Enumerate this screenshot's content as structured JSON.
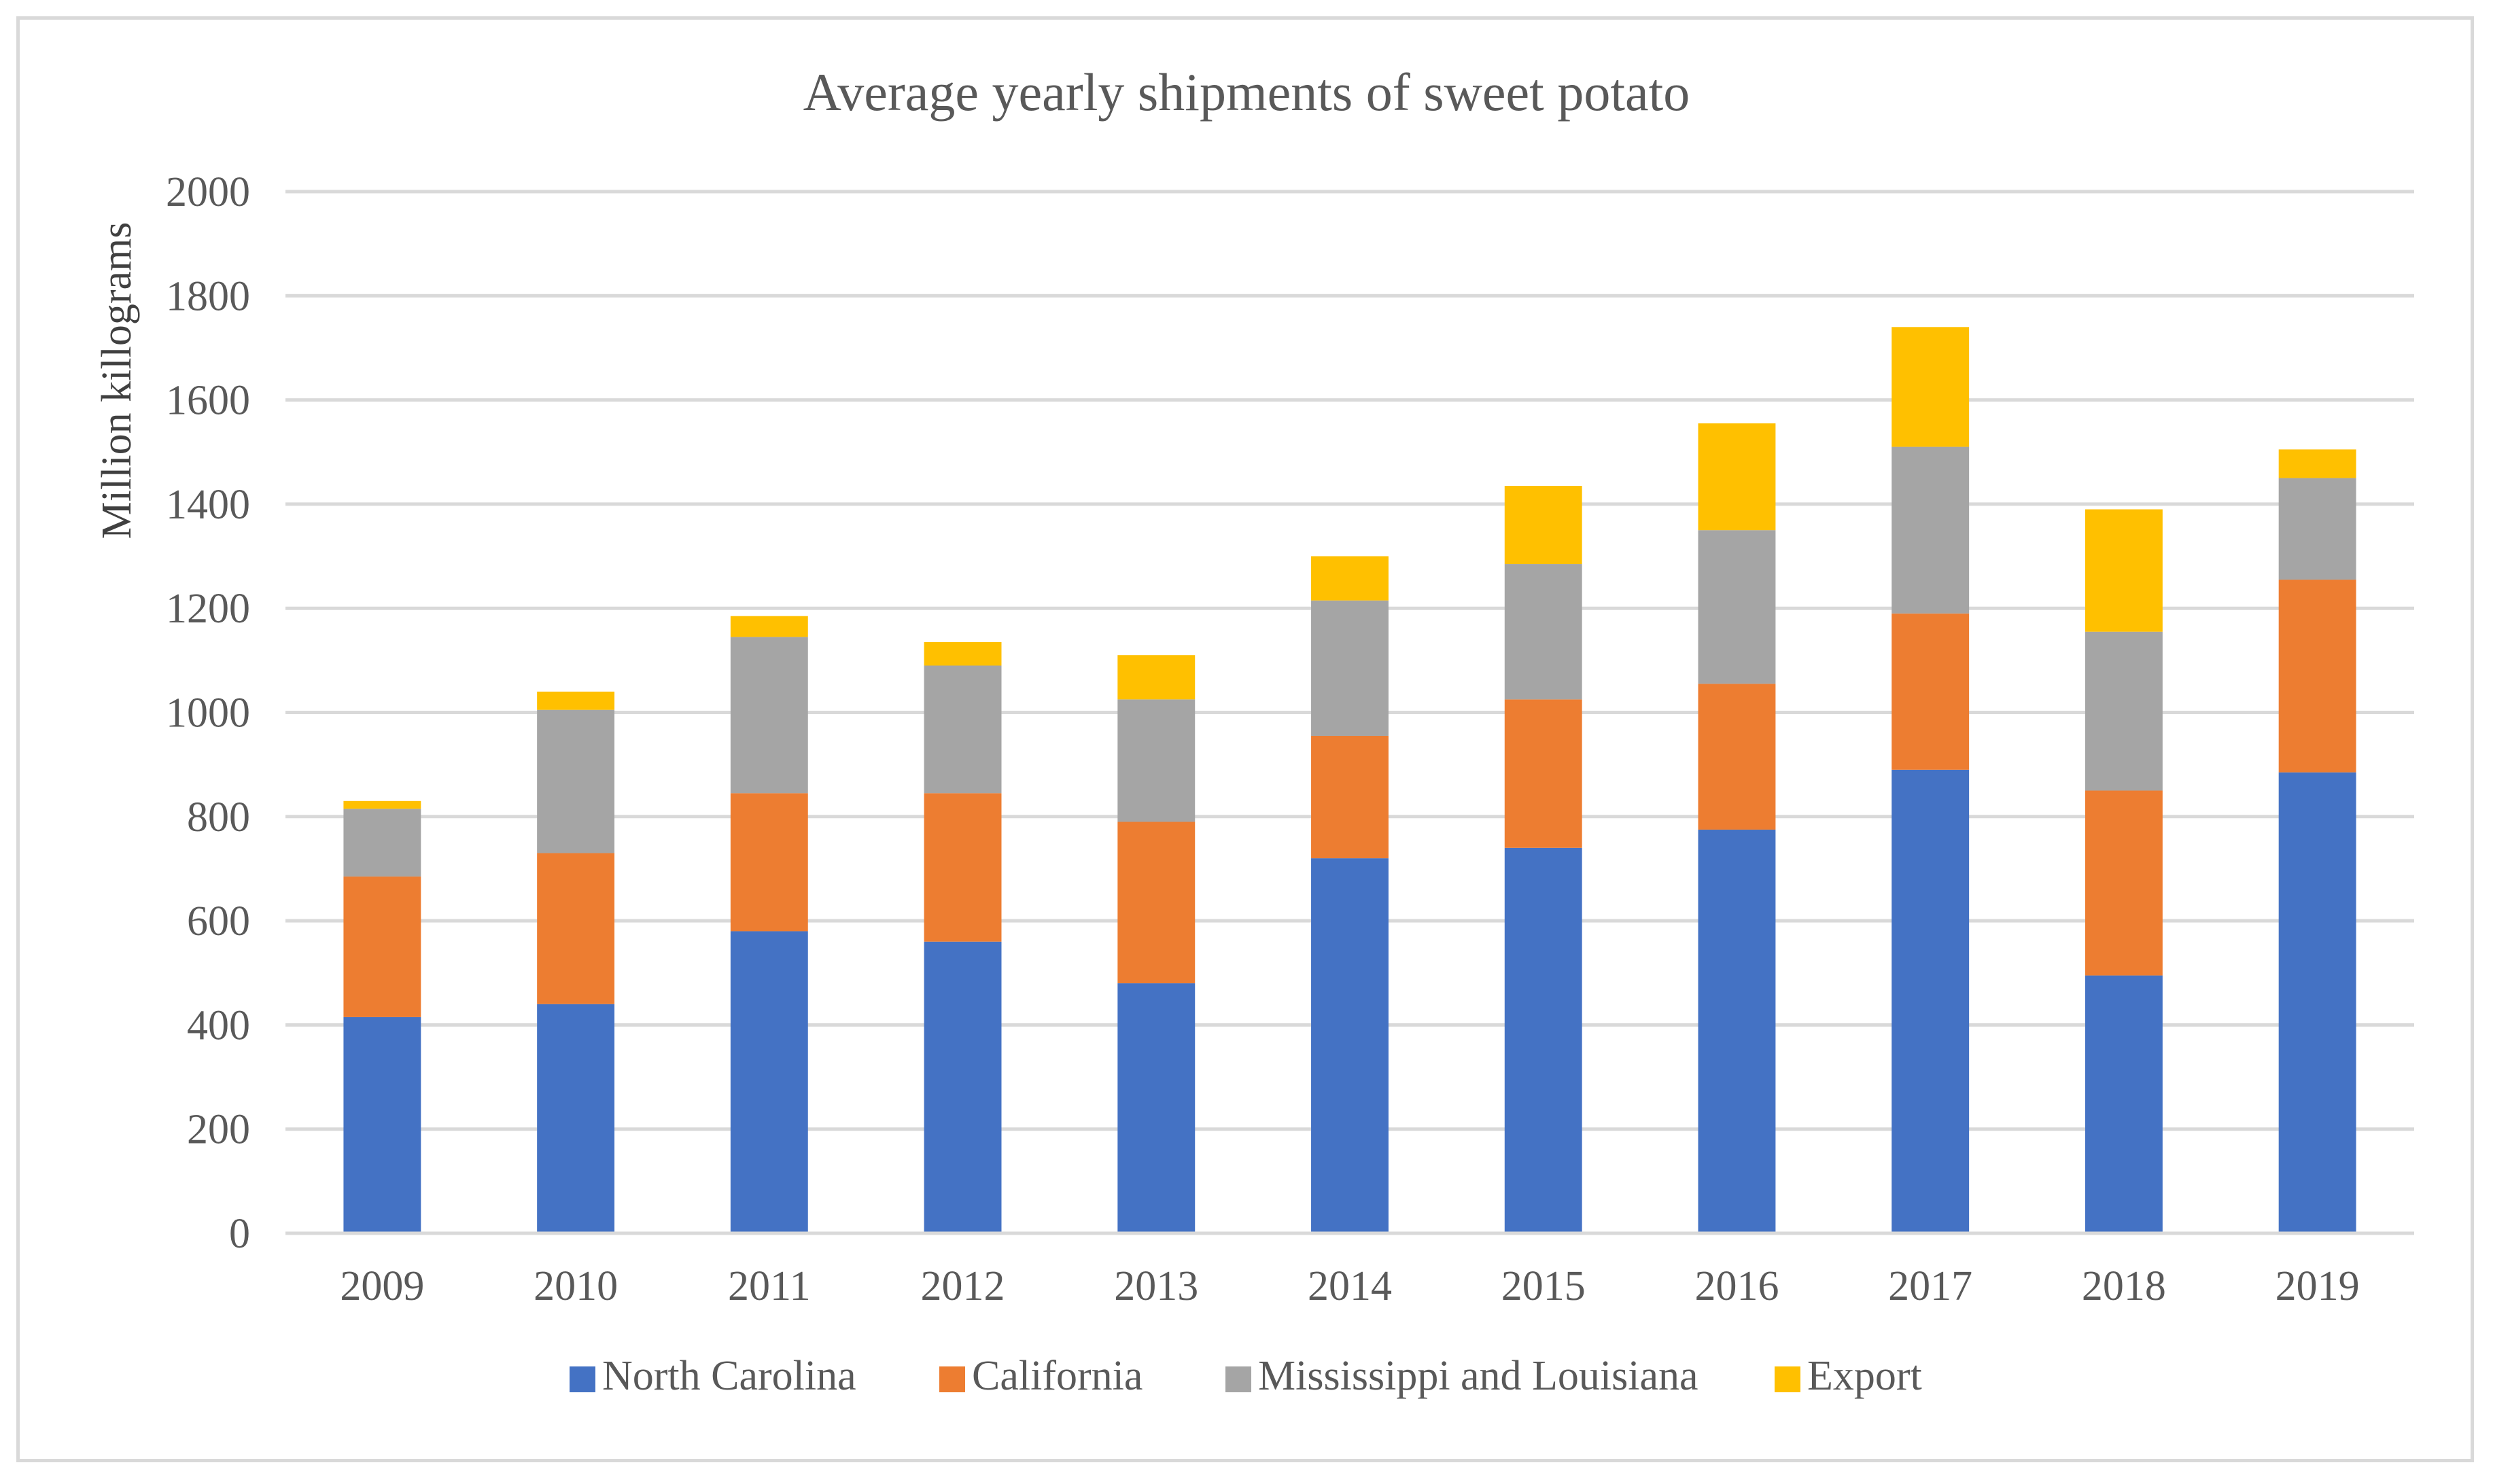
{
  "chart_data": {
    "type": "bar",
    "stacked": true,
    "title": "Average yearly shipments of sweet potato",
    "xlabel": "",
    "ylabel": "Million killograms",
    "ylim": [
      0,
      2000
    ],
    "yticks": [
      0,
      200,
      400,
      600,
      800,
      1000,
      1200,
      1400,
      1600,
      1800,
      2000
    ],
    "grid": true,
    "legend_position": "bottom",
    "categories": [
      "2009",
      "2010",
      "2011",
      "2012",
      "2013",
      "2014",
      "2015",
      "2016",
      "2017",
      "2018",
      "2019"
    ],
    "series": [
      {
        "name": "North Carolina",
        "color": "#4472C4",
        "values": [
          415,
          440,
          580,
          560,
          480,
          720,
          740,
          775,
          890,
          495,
          885
        ]
      },
      {
        "name": "California",
        "color": "#ED7D31",
        "values": [
          270,
          290,
          265,
          285,
          310,
          235,
          285,
          280,
          300,
          355,
          370
        ]
      },
      {
        "name": "Mississippi and Louisiana",
        "color": "#A5A5A5",
        "values": [
          130,
          275,
          300,
          245,
          235,
          260,
          260,
          295,
          320,
          305,
          195
        ]
      },
      {
        "name": "Export",
        "color": "#FFC000",
        "values": [
          15,
          35,
          40,
          45,
          85,
          85,
          150,
          205,
          230,
          235,
          55
        ]
      }
    ]
  }
}
